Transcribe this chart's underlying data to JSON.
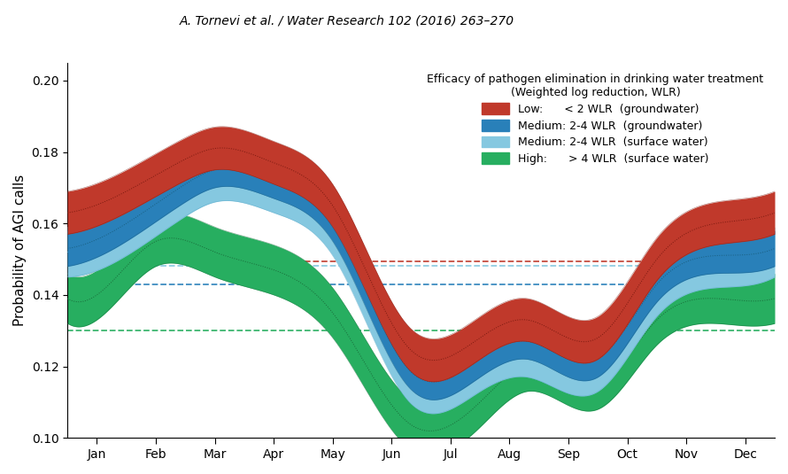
{
  "title": "A. Tornevi et al. / Water Research 102 (2016) 263–270",
  "ylabel": "Probability of AGI calls",
  "xlabel_ticks": [
    "Jan",
    "Feb",
    "Mar",
    "Apr",
    "May",
    "Jun",
    "Jul",
    "Aug",
    "Sep",
    "Oct",
    "Nov",
    "Dec"
  ],
  "ylim": [
    0.1,
    0.205
  ],
  "yticks": [
    0.1,
    0.12,
    0.14,
    0.16,
    0.18,
    0.2
  ],
  "legend_title": "Efficacy of pathogen elimination in drinking water treatment\n(Weighted log reduction, WLR)",
  "legend_entries": [
    "Low:      < 2 WLR  (groundwater)",
    "Medium: 2-4 WLR  (groundwater)",
    "Medium: 2-4 WLR  (surface water)",
    "High:      > 4 WLR  (surface water)"
  ],
  "colors": {
    "red": "#c0392b",
    "blue": "#2980b9",
    "cyan": "#85c8e0",
    "green": "#27ae60"
  },
  "dashed_lines": {
    "red": 0.1495,
    "cyan": 0.1482,
    "blue": 0.143,
    "green": 0.13
  }
}
